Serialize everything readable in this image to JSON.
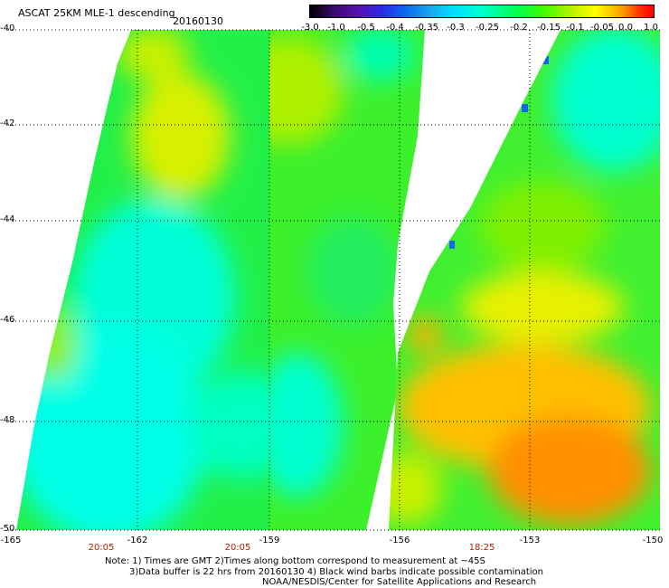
{
  "header": {
    "title": "ASCAT 25KM MLE-1 descending",
    "date": "20160130"
  },
  "colorbar": {
    "ticks": [
      "-3.0",
      "-1.0",
      "-0.5",
      "-0.4",
      "-0.35",
      "-0.3",
      "-0.25",
      "-0.2",
      "-0.15",
      "-0.1",
      "-0.05",
      "0.0",
      "1.0"
    ],
    "colors": [
      "#000000",
      "#5a10b4",
      "#2b2be6",
      "#14a9f0",
      "#00ffff",
      "#00ff50",
      "#ffff00",
      "#ff9a00",
      "#ff0000"
    ]
  },
  "map": {
    "lat_labels": [
      "-40",
      "-42",
      "-44",
      "-46",
      "-48",
      "-50"
    ],
    "lon_labels": [
      "-165",
      "-162",
      "-159",
      "-156",
      "-153",
      "-150"
    ],
    "pass_times": [
      "20:05",
      "20:05",
      "18:25"
    ]
  },
  "footer": {
    "note_line1": "Note: 1) Times are GMT 2)Times along bottom correspond to measurement at ~45S",
    "note_line2": "3)Data buffer is 22 hrs from 20160130 4) Black wind barbs indicate possible contamination",
    "credit": "NOAA/NESDIS/Center for Satellite Applications and Research"
  }
}
